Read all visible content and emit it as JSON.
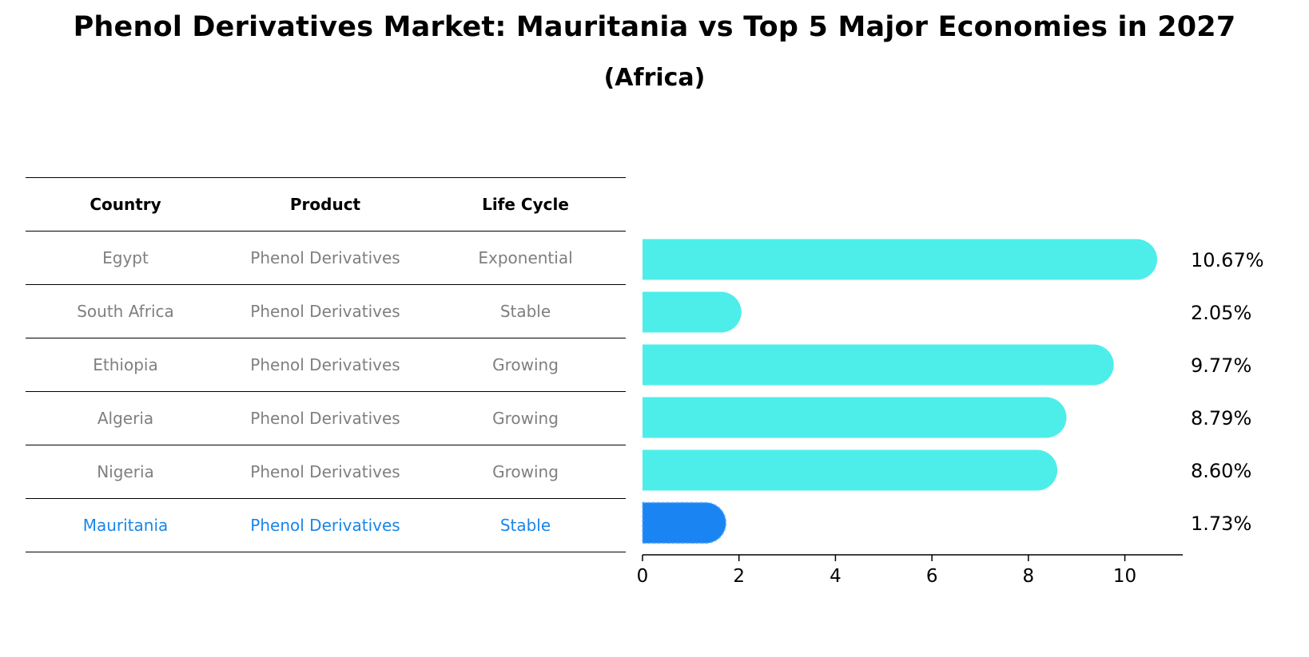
{
  "title": "Phenol Derivatives Market: Mauritania vs Top 5 Major Economies in 2027",
  "subtitle": "(Africa)",
  "table": {
    "headers": [
      "Country",
      "Product",
      "Life Cycle"
    ],
    "rows": [
      {
        "country": "Egypt",
        "product": "Phenol Derivatives",
        "life_cycle": "Exponential"
      },
      {
        "country": "South Africa",
        "product": "Phenol Derivatives",
        "life_cycle": "Stable"
      },
      {
        "country": "Ethiopia",
        "product": "Phenol Derivatives",
        "life_cycle": "Growing"
      },
      {
        "country": "Algeria",
        "product": "Phenol Derivatives",
        "life_cycle": "Growing"
      },
      {
        "country": "Nigeria",
        "product": "Phenol Derivatives",
        "life_cycle": "Growing"
      },
      {
        "country": "Mauritania",
        "product": "Phenol Derivatives",
        "life_cycle": "Stable"
      }
    ]
  },
  "chart_data": {
    "type": "bar",
    "orientation": "horizontal",
    "categories": [
      "Egypt",
      "South Africa",
      "Ethiopia",
      "Algeria",
      "Nigeria",
      "Mauritania"
    ],
    "values": [
      10.67,
      2.05,
      9.77,
      8.79,
      8.6,
      1.73
    ],
    "value_labels": [
      "10.67%",
      "2.05%",
      "9.77%",
      "8.79%",
      "8.60%",
      "1.73%"
    ],
    "xlim": [
      0,
      11.2
    ],
    "xticks": [
      0,
      2,
      4,
      6,
      8,
      10
    ],
    "highlight_index": 5,
    "colors": {
      "bar": "#4deeea",
      "highlight": "#1a85f2",
      "highlight_text": "#1a85e8",
      "muted_text": "#7f7f7f"
    },
    "grid": false
  }
}
